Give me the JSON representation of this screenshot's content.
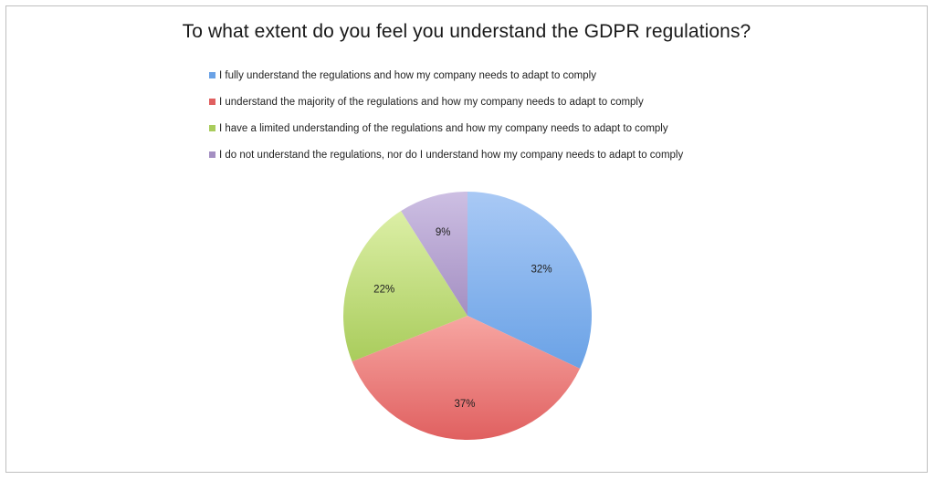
{
  "chart_data": {
    "type": "pie",
    "title": "To what extent do you feel you understand the GDPR regulations?",
    "start_angle_deg": 0,
    "direction": "clockwise",
    "slices": [
      {
        "label": "I fully understand the regulations and how my company needs to adapt to comply",
        "value": 32,
        "value_label": "32%",
        "color": "#6aa2e6",
        "color_light": "#a9c9f5"
      },
      {
        "label": "I understand the majority of the regulations and how my company needs to adapt to comply",
        "value": 37,
        "value_label": "37%",
        "color": "#e06060",
        "color_light": "#f7a6a2"
      },
      {
        "label": "I have a limited understanding of the regulations and how my company needs to adapt to comply",
        "value": 22,
        "value_label": "22%",
        "color": "#a9cc5c",
        "color_light": "#dcefa6"
      },
      {
        "label": "I do not understand the regulations, nor do I understand how my company needs to adapt to comply",
        "value": 9,
        "value_label": "9%",
        "color": "#a48fc2",
        "color_light": "#cdbfe3"
      }
    ],
    "legend_position": "top"
  }
}
